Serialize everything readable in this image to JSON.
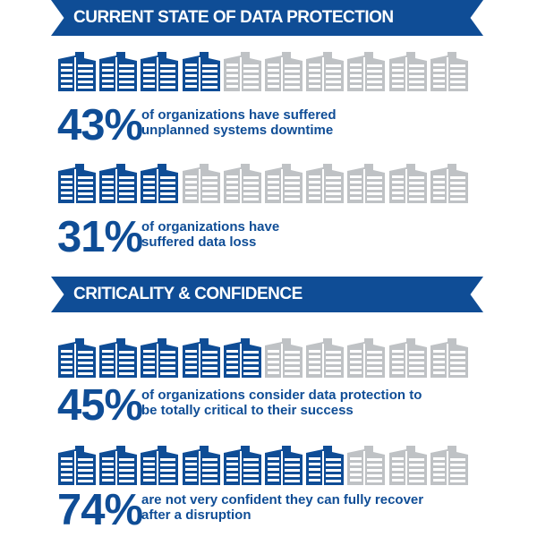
{
  "colors": {
    "accent": "#0f4d96",
    "inactive": "#bfc2c5"
  },
  "icon_name": "office-building-icon",
  "icons_per_row": 10,
  "sections": [
    {
      "title": "CURRENT STATE OF DATA PROTECTION"
    },
    {
      "title": "CRITICALITY & CONFIDENCE"
    }
  ],
  "stats": [
    {
      "percent": "43%",
      "filled": 4,
      "lines": [
        "of organizations have suffered",
        "unplanned systems downtime"
      ]
    },
    {
      "percent": "31%",
      "filled": 3,
      "lines": [
        "of organizations have",
        "suffered data loss"
      ]
    },
    {
      "percent": "45%",
      "filled": 5,
      "lines": [
        "of organizations consider data protection to",
        "be totally critical to their success"
      ]
    },
    {
      "percent": "74%",
      "filled": 7,
      "lines": [
        "are not very confident they can fully recover",
        "after a disruption"
      ]
    }
  ]
}
